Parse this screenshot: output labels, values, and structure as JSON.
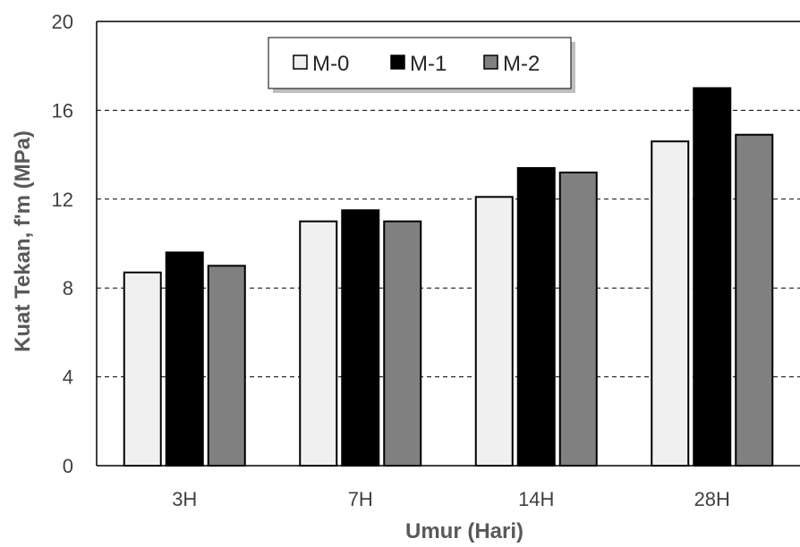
{
  "chart_data": {
    "type": "bar",
    "categories": [
      "3H",
      "7H",
      "14H",
      "28H"
    ],
    "series": [
      {
        "name": "M-0",
        "values": [
          8.7,
          11.0,
          12.1,
          14.6
        ]
      },
      {
        "name": "M-1",
        "values": [
          9.6,
          11.5,
          13.4,
          17.0
        ]
      },
      {
        "name": "M-2",
        "values": [
          9.0,
          11.0,
          13.2,
          14.9
        ]
      }
    ],
    "xlabel": "Umur (Hari)",
    "ylabel": "Kuat Tekan, f'm (MPa)",
    "ylim": [
      0,
      20
    ],
    "yticks": [
      0,
      4,
      8,
      12,
      16,
      20
    ],
    "grid": "horizontal dashed",
    "legend_position": "top-center"
  },
  "colors": {
    "M-0": "#f0f0f0",
    "M-1": "#000000",
    "M-2": "#808080",
    "bar_outline": "#000000",
    "grid": "#000000"
  }
}
